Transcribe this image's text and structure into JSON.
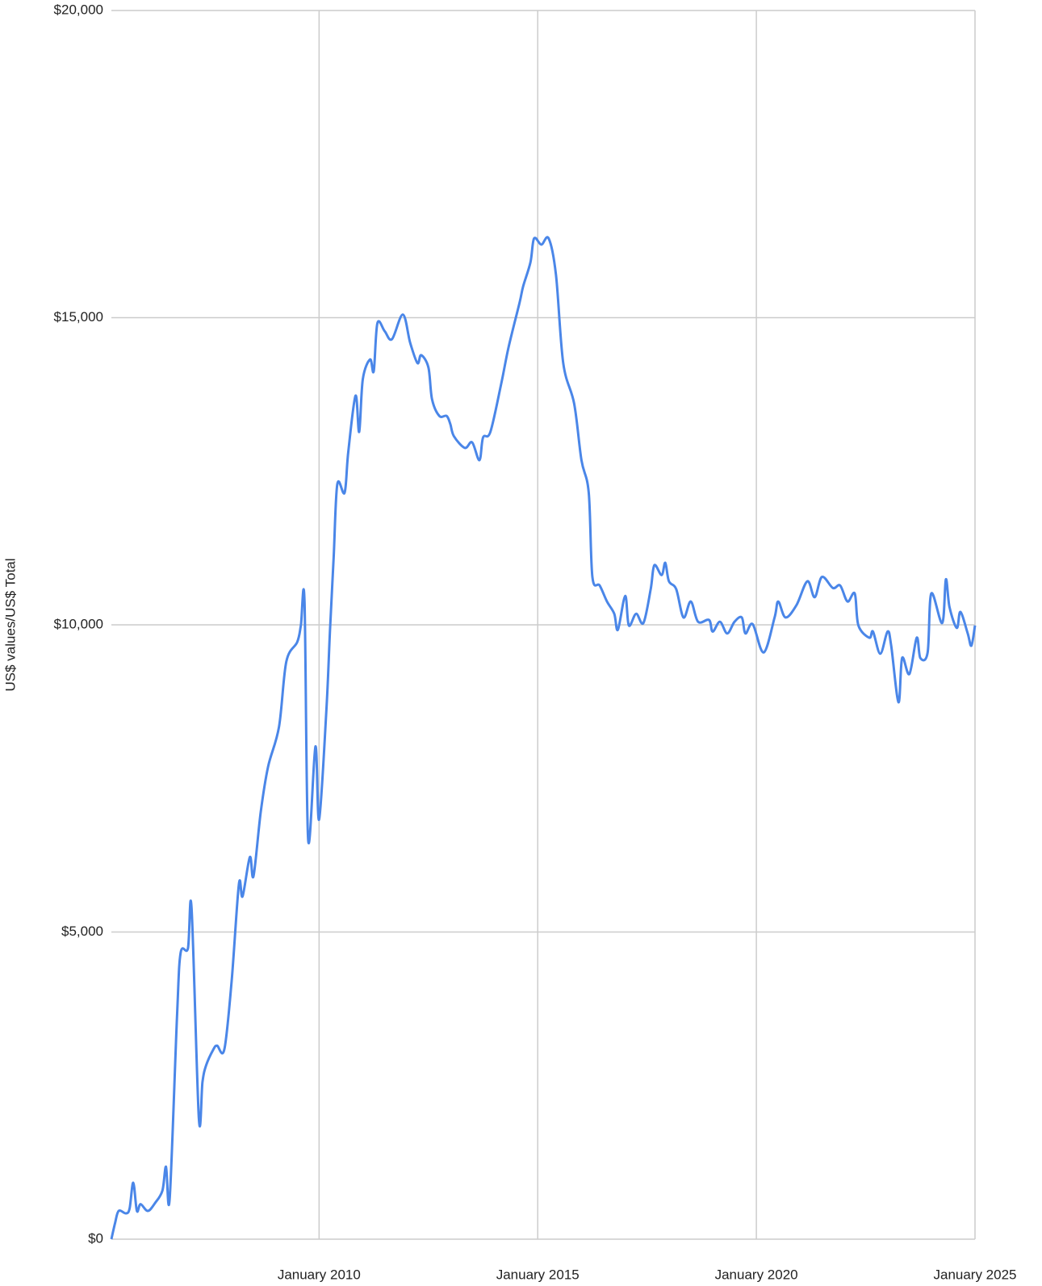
{
  "chart_data": {
    "type": "line",
    "y_label": "US$ values/US$ Total",
    "x": [
      "2005-04",
      "2005-05",
      "2005-06",
      "2005-08",
      "2005-09",
      "2005-10",
      "2005-11",
      "2005-12",
      "2006-02",
      "2006-04",
      "2006-06",
      "2006-07",
      "2006-08",
      "2006-10",
      "2006-11",
      "2007-01",
      "2007-02",
      "2007-04",
      "2007-05",
      "2007-06",
      "2007-08",
      "2007-09",
      "2007-11",
      "2008-01",
      "2008-03",
      "2008-04",
      "2008-06",
      "2008-07",
      "2008-09",
      "2008-11",
      "2009-02",
      "2009-04",
      "2009-07",
      "2009-08",
      "2009-09",
      "2009-10",
      "2009-12",
      "2010-01",
      "2010-03",
      "2010-04",
      "2010-05",
      "2010-06",
      "2010-08",
      "2010-09",
      "2010-11",
      "2010-12",
      "2011-01",
      "2011-03",
      "2011-04",
      "2011-05",
      "2011-07",
      "2011-09",
      "2011-12",
      "2012-02",
      "2012-04",
      "2012-05",
      "2012-07",
      "2012-08",
      "2012-10",
      "2012-12",
      "2013-01",
      "2013-02",
      "2013-05",
      "2013-07",
      "2013-09",
      "2013-10",
      "2013-12",
      "2014-03",
      "2014-05",
      "2014-08",
      "2014-09",
      "2014-11",
      "2014-12",
      "2015-02",
      "2015-04",
      "2015-06",
      "2015-08",
      "2015-11",
      "2016-01",
      "2016-03",
      "2016-04",
      "2016-06",
      "2016-08",
      "2016-10",
      "2016-11",
      "2017-01",
      "2017-02",
      "2017-04",
      "2017-06",
      "2017-08",
      "2017-09",
      "2017-11",
      "2017-12",
      "2018-01",
      "2018-03",
      "2018-05",
      "2018-07",
      "2018-09",
      "2018-12",
      "2019-01",
      "2019-03",
      "2019-05",
      "2019-07",
      "2019-09",
      "2019-10",
      "2019-12",
      "2020-03",
      "2020-06",
      "2020-07",
      "2020-09",
      "2020-12",
      "2021-03",
      "2021-05",
      "2021-07",
      "2021-10",
      "2021-12",
      "2022-02",
      "2022-04",
      "2022-05",
      "2022-08",
      "2022-09",
      "2022-11",
      "2023-01",
      "2023-02",
      "2023-04",
      "2023-05",
      "2023-07",
      "2023-09",
      "2023-10",
      "2023-12",
      "2024-01",
      "2024-04",
      "2024-05",
      "2024-06",
      "2024-08",
      "2024-09",
      "2024-11",
      "2024-12",
      "2025-01"
    ],
    "series": [
      {
        "name": "US$ Total",
        "color": "#4a86e8",
        "values": [
          0,
          260,
          460,
          420,
          500,
          920,
          460,
          570,
          460,
          590,
          790,
          1180,
          660,
          3610,
          4660,
          4730,
          5390,
          1970,
          2560,
          2830,
          3090,
          3150,
          3090,
          4200,
          5780,
          5580,
          6220,
          5910,
          6960,
          7690,
          8340,
          9400,
          9720,
          9990,
          10380,
          6500,
          8020,
          6830,
          8610,
          9920,
          11100,
          12290,
          12150,
          12810,
          13730,
          13140,
          14000,
          14320,
          14130,
          14910,
          14780,
          14650,
          15050,
          14590,
          14260,
          14390,
          14190,
          13670,
          13400,
          13400,
          13270,
          13070,
          12880,
          12970,
          12680,
          13050,
          13140,
          13930,
          14520,
          15240,
          15510,
          15900,
          16290,
          16190,
          16290,
          15700,
          14260,
          13600,
          12680,
          12150,
          10780,
          10640,
          10380,
          10180,
          9920,
          10470,
          9990,
          10180,
          10030,
          10580,
          10970,
          10810,
          11010,
          10710,
          10580,
          10120,
          10380,
          10050,
          10080,
          9890,
          10050,
          9860,
          10050,
          10120,
          9860,
          10010,
          9550,
          10120,
          10380,
          10120,
          10320,
          10710,
          10450,
          10780,
          10600,
          10640,
          10380,
          10510,
          9990,
          9790,
          9890,
          9530,
          9890,
          9660,
          8740,
          9460,
          9200,
          9790,
          9460,
          9550,
          10510,
          10030,
          10740,
          10290,
          9950,
          10210,
          9860,
          9660,
          9990
        ]
      }
    ],
    "xlim": [
      "2005-04",
      "2025-01"
    ],
    "xticks": [
      {
        "value": "2010-01",
        "label": "January 2010"
      },
      {
        "value": "2015-01",
        "label": "January 2015"
      },
      {
        "value": "2020-01",
        "label": "January 2020"
      },
      {
        "value": "2025-01",
        "label": "January 2025"
      }
    ],
    "ylim": [
      0,
      20000
    ],
    "yticks": [
      {
        "value": 0,
        "label": "$0"
      },
      {
        "value": 5000,
        "label": "$5,000"
      },
      {
        "value": 10000,
        "label": "$10,000"
      },
      {
        "value": 15000,
        "label": "$15,000"
      },
      {
        "value": 20000,
        "label": "$20,000"
      }
    ],
    "grid": true
  }
}
